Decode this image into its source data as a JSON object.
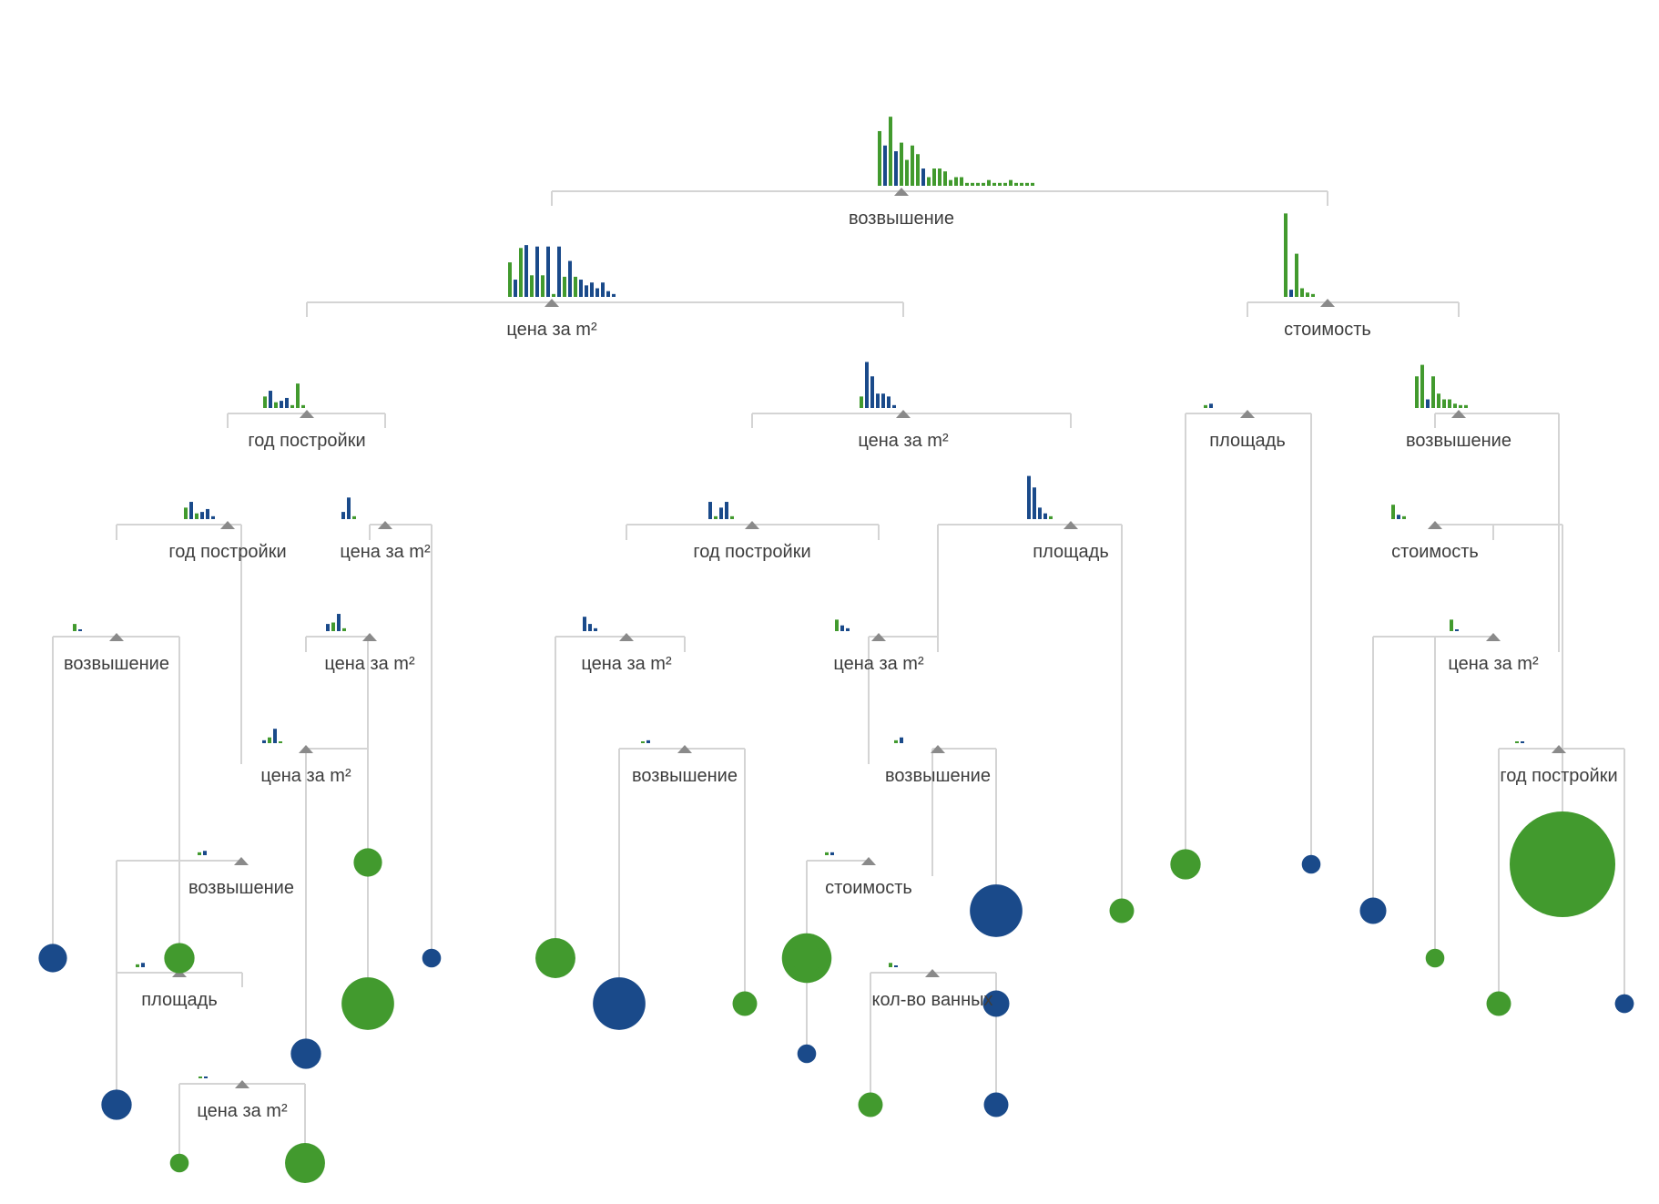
{
  "colors": {
    "class_a": "#1a4a8a",
    "class_b": "#429a2e",
    "edge": "#d4d4d4",
    "marker": "#8a8a8a",
    "text": "#3d3d3d"
  },
  "nodes": [
    {
      "id": "n0",
      "label": "возвышение",
      "hist": [
        [
          0.38,
          0
        ],
        [
          0.28,
          1
        ],
        [
          0.48,
          0
        ],
        [
          0.24,
          1
        ],
        [
          0.3,
          0
        ],
        [
          0.18,
          0
        ],
        [
          0.28,
          0
        ],
        [
          0.22,
          0
        ],
        [
          0.12,
          1
        ],
        [
          0.06,
          0
        ],
        [
          0.12,
          0
        ],
        [
          0.12,
          0
        ],
        [
          0.1,
          0
        ],
        [
          0.04,
          0
        ],
        [
          0.06,
          0
        ],
        [
          0.06,
          0
        ],
        [
          0.02,
          0
        ],
        [
          0.02,
          0
        ],
        [
          0.02,
          0
        ],
        [
          0.02,
          0
        ],
        [
          0.04,
          0
        ],
        [
          0.02,
          0
        ],
        [
          0.02,
          0
        ],
        [
          0.02,
          0
        ],
        [
          0.04,
          0
        ],
        [
          0.02,
          0
        ],
        [
          0.02,
          0
        ],
        [
          0.02,
          0
        ],
        [
          0.02,
          0
        ]
      ]
    },
    {
      "id": "n1",
      "label": "цена за m²",
      "hist": [
        [
          0.24,
          0
        ],
        [
          0.12,
          1
        ],
        [
          0.34,
          0
        ],
        [
          0.36,
          1
        ],
        [
          0.15,
          0
        ],
        [
          0.35,
          1
        ],
        [
          0.15,
          0
        ],
        [
          0.35,
          1
        ],
        [
          0.02,
          0
        ],
        [
          0.35,
          1
        ],
        [
          0.14,
          0
        ],
        [
          0.25,
          1
        ],
        [
          0.14,
          0
        ],
        [
          0.12,
          1
        ],
        [
          0.08,
          1
        ],
        [
          0.1,
          1
        ],
        [
          0.06,
          1
        ],
        [
          0.1,
          1
        ],
        [
          0.04,
          1
        ],
        [
          0.02,
          1
        ]
      ]
    },
    {
      "id": "n2",
      "label": "стоимость",
      "hist": [
        [
          0.58,
          0
        ],
        [
          0.05,
          1
        ],
        [
          0.3,
          0
        ],
        [
          0.06,
          0
        ],
        [
          0.03,
          0
        ],
        [
          0.02,
          0
        ]
      ]
    },
    {
      "id": "n3",
      "label": "год постройки",
      "hist": [
        [
          0.08,
          0
        ],
        [
          0.12,
          1
        ],
        [
          0.04,
          0
        ],
        [
          0.05,
          1
        ],
        [
          0.07,
          1
        ],
        [
          0.02,
          0
        ],
        [
          0.17,
          0
        ],
        [
          0.02,
          0
        ]
      ]
    },
    {
      "id": "n4",
      "label": "цена за m²",
      "hist": [
        [
          0.08,
          0
        ],
        [
          0.32,
          1
        ],
        [
          0.22,
          1
        ],
        [
          0.1,
          1
        ],
        [
          0.1,
          1
        ],
        [
          0.08,
          1
        ],
        [
          0.02,
          1
        ]
      ]
    },
    {
      "id": "n5",
      "label": "площадь",
      "hist": [
        [
          0.02,
          0
        ],
        [
          0.03,
          1
        ]
      ]
    },
    {
      "id": "n6",
      "label": "возвышение",
      "hist": [
        [
          0.22,
          0
        ],
        [
          0.3,
          0
        ],
        [
          0.06,
          1
        ],
        [
          0.22,
          0
        ],
        [
          0.1,
          0
        ],
        [
          0.06,
          0
        ],
        [
          0.06,
          0
        ],
        [
          0.03,
          0
        ],
        [
          0.02,
          0
        ],
        [
          0.02,
          0
        ]
      ]
    },
    {
      "id": "n7",
      "label": "год постройки",
      "hist": [
        [
          0.08,
          0
        ],
        [
          0.12,
          1
        ],
        [
          0.04,
          0
        ],
        [
          0.05,
          1
        ],
        [
          0.07,
          1
        ],
        [
          0.02,
          1
        ]
      ]
    },
    {
      "id": "n8",
      "label": "цена за m²",
      "hist": [
        [
          0.05,
          1
        ],
        [
          0.15,
          1
        ],
        [
          0.02,
          0
        ]
      ]
    },
    {
      "id": "n9",
      "label": "год постройки",
      "hist": [
        [
          0.12,
          1
        ],
        [
          0.02,
          0
        ],
        [
          0.08,
          1
        ],
        [
          0.12,
          1
        ],
        [
          0.02,
          0
        ]
      ]
    },
    {
      "id": "n10",
      "label": "площадь",
      "hist": [
        [
          0.3,
          1
        ],
        [
          0.22,
          1
        ],
        [
          0.08,
          1
        ],
        [
          0.04,
          1
        ],
        [
          0.02,
          0
        ]
      ]
    },
    {
      "id": "n11",
      "label": "стоимость",
      "hist": [
        [
          0.1,
          0
        ],
        [
          0.03,
          1
        ],
        [
          0.02,
          0
        ]
      ]
    },
    {
      "id": "n12",
      "label": "возвышение",
      "hist": [
        [
          0.05,
          0
        ],
        [
          0.01,
          1
        ]
      ]
    },
    {
      "id": "n13",
      "label": "цена за m²",
      "hist": [
        [
          0.05,
          1
        ],
        [
          0.06,
          0
        ],
        [
          0.12,
          1
        ],
        [
          0.02,
          0
        ]
      ]
    },
    {
      "id": "n14",
      "label": "цена за m²",
      "hist": [
        [
          0.1,
          1
        ],
        [
          0.05,
          1
        ],
        [
          0.02,
          1
        ]
      ]
    },
    {
      "id": "n15",
      "label": "цена за m²",
      "hist": [
        [
          0.08,
          0
        ],
        [
          0.04,
          1
        ],
        [
          0.02,
          1
        ]
      ]
    },
    {
      "id": "n16",
      "label": "цена за m²",
      "hist": [
        [
          0.08,
          0
        ],
        [
          0.01,
          1
        ]
      ]
    },
    {
      "id": "n17",
      "label": "цена за m²",
      "hist": [
        [
          0.02,
          1
        ],
        [
          0.04,
          0
        ],
        [
          0.1,
          1
        ],
        [
          0.01,
          0
        ]
      ]
    },
    {
      "id": "n18",
      "label": "возвышение",
      "hist": [
        [
          0.01,
          0
        ],
        [
          0.02,
          1
        ]
      ]
    },
    {
      "id": "n19",
      "label": "возвышение",
      "hist": [
        [
          0.02,
          0
        ],
        [
          0.03,
          1
        ]
      ]
    },
    {
      "id": "n20",
      "label": "год постройки",
      "hist": [
        [
          0.01,
          0
        ],
        [
          0.01,
          1
        ]
      ]
    },
    {
      "id": "n21",
      "label": "возвышение",
      "hist": [
        [
          0.02,
          0
        ],
        [
          0.04,
          1
        ]
      ]
    },
    {
      "id": "n22",
      "label": "стоимость",
      "hist": [
        [
          0.02,
          0
        ],
        [
          0.02,
          1
        ]
      ]
    },
    {
      "id": "n23",
      "label": "площадь",
      "hist": [
        [
          0.02,
          0
        ],
        [
          0.03,
          1
        ]
      ]
    },
    {
      "id": "n24",
      "label": "кол-во ванных",
      "hist": [
        [
          0.03,
          0
        ],
        [
          0.01,
          1
        ]
      ]
    },
    {
      "id": "n25",
      "label": "цена за m²",
      "hist": [
        [
          0.01,
          0
        ],
        [
          0.01,
          1
        ]
      ]
    }
  ],
  "leaves": [
    {
      "id": "l1",
      "class": "a",
      "size": 0.2
    },
    {
      "id": "l2",
      "class": "b",
      "size": 0.22
    },
    {
      "id": "l3",
      "class": "a",
      "size": 0.16
    },
    {
      "id": "l4",
      "class": "b",
      "size": 0.2
    },
    {
      "id": "l5",
      "class": "a",
      "size": 0.1
    },
    {
      "id": "l6",
      "class": "b",
      "size": 0.45
    },
    {
      "id": "l7",
      "class": "b",
      "size": 0.32
    },
    {
      "id": "l8",
      "class": "a",
      "size": 0.22
    },
    {
      "id": "l9",
      "class": "b",
      "size": 0.42
    },
    {
      "id": "l10",
      "class": "a",
      "size": 0.45
    },
    {
      "id": "l11",
      "class": "b",
      "size": 0.16
    },
    {
      "id": "l12",
      "class": "b",
      "size": 0.22
    },
    {
      "id": "l13",
      "class": "a",
      "size": 0.1
    },
    {
      "id": "l14",
      "class": "a",
      "size": 0.45
    },
    {
      "id": "l15",
      "class": "a",
      "size": 0.18
    },
    {
      "id": "l16",
      "class": "b",
      "size": 0.16
    },
    {
      "id": "l17",
      "class": "b",
      "size": 0.22
    },
    {
      "id": "l18",
      "class": "a",
      "size": 0.1
    },
    {
      "id": "l19",
      "class": "a",
      "size": 0.8
    },
    {
      "id": "l20",
      "class": "b",
      "size": 0.1
    },
    {
      "id": "l21",
      "class": "a",
      "size": 0.18
    },
    {
      "id": "l22",
      "class": "b",
      "size": 0.16
    },
    {
      "id": "l23",
      "class": "a",
      "size": 0.1
    },
    {
      "id": "l24",
      "class": "b",
      "size": 0.16
    },
    {
      "id": "l25",
      "class": "a",
      "size": 0.22
    },
    {
      "id": "l26",
      "class": "a",
      "size": 0.16
    },
    {
      "id": "l27",
      "class": "b",
      "size": 0.32
    },
    {
      "id": "l28",
      "class": "b",
      "size": 0.1
    },
    {
      "id": "l29",
      "class": "b",
      "size": 1.0
    },
    {
      "id": "l30",
      "class": "a",
      "size": 0.1
    }
  ],
  "edges": [
    [
      "n0",
      "n1"
    ],
    [
      "n0",
      "n2"
    ],
    [
      "n1",
      "n3"
    ],
    [
      "n1",
      "n4"
    ],
    [
      "n2",
      "n5"
    ],
    [
      "n2",
      "n6"
    ],
    [
      "n3",
      "n7"
    ],
    [
      "n3",
      "n8"
    ],
    [
      "n4",
      "n9"
    ],
    [
      "n4",
      "n10"
    ],
    [
      "n5",
      "l17"
    ],
    [
      "n5",
      "l18"
    ],
    [
      "n6",
      "n11"
    ],
    [
      "n6",
      "n20"
    ],
    [
      "n7",
      "n12"
    ],
    [
      "n7",
      "n19"
    ],
    [
      "n8",
      "n13"
    ],
    [
      "n8",
      "l5"
    ],
    [
      "n9",
      "n14"
    ],
    [
      "n9",
      "n15"
    ],
    [
      "n10",
      "n21"
    ],
    [
      "n10",
      "l16"
    ],
    [
      "n11",
      "l19"
    ],
    [
      "n11",
      "n16"
    ],
    [
      "n12",
      "l1"
    ],
    [
      "n12",
      "l2"
    ],
    [
      "n13",
      "n17"
    ],
    [
      "n13",
      "l6"
    ],
    [
      "n14",
      "l7"
    ],
    [
      "n14",
      "n18"
    ],
    [
      "n15",
      "n22"
    ],
    [
      "n15",
      "n21x"
    ],
    [
      "n16",
      "l20"
    ],
    [
      "n16",
      "l21"
    ],
    [
      "n17",
      "l4"
    ],
    [
      "n17",
      "l8"
    ],
    [
      "n18",
      "l10"
    ],
    [
      "n18",
      "l11"
    ],
    [
      "n19",
      "n23"
    ],
    [
      "n19",
      "l3"
    ],
    [
      "n20",
      "l22"
    ],
    [
      "n20",
      "l23"
    ],
    [
      "n21",
      "n24"
    ],
    [
      "n21",
      "l14"
    ],
    [
      "n22",
      "l12"
    ],
    [
      "n22",
      "l13"
    ],
    [
      "n23",
      "l25"
    ],
    [
      "n23",
      "n25"
    ],
    [
      "n24",
      "l24"
    ],
    [
      "n24",
      "l26"
    ],
    [
      "n25",
      "l27"
    ],
    [
      "n25",
      "l28"
    ]
  ]
}
